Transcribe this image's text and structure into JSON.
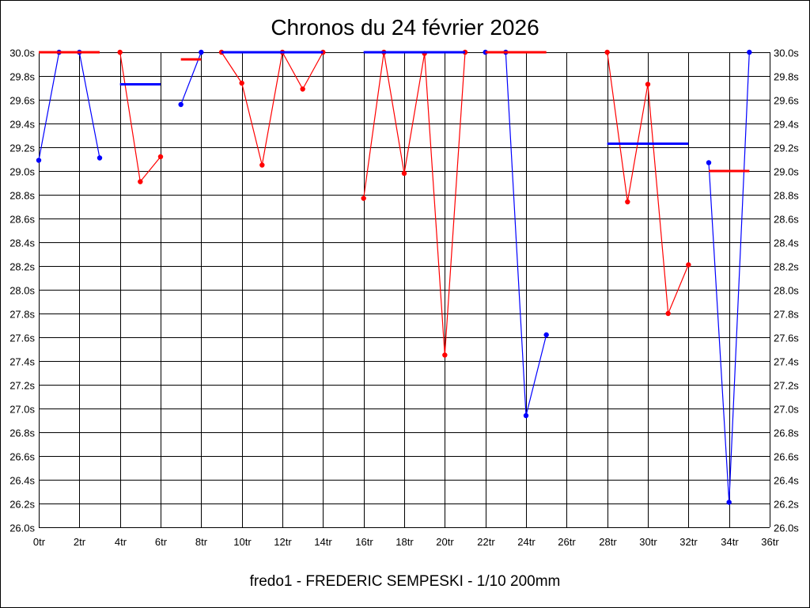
{
  "chart_data": {
    "type": "line",
    "title": "Chronos du 24 février 2026",
    "xlabel": "fredo1 - FREDERIC SEMPESKI - 1/10 200mm",
    "ylabel": "",
    "xlim": [
      0,
      36
    ],
    "ylim": [
      26.0,
      30.0
    ],
    "x_ticks": [
      0,
      2,
      4,
      6,
      8,
      10,
      12,
      14,
      16,
      18,
      20,
      22,
      24,
      26,
      28,
      30,
      32,
      34,
      36
    ],
    "y_ticks": [
      26.0,
      26.2,
      26.4,
      26.6,
      26.8,
      27.0,
      27.2,
      27.4,
      27.6,
      27.8,
      28.0,
      28.2,
      28.4,
      28.6,
      28.8,
      29.0,
      29.2,
      29.4,
      29.6,
      29.8,
      30.0
    ],
    "x_tick_suffix": "tr",
    "y_tick_suffix": "s",
    "grid": true,
    "colors": {
      "red": "#ff0000",
      "blue": "#0000ff"
    },
    "runs": [
      {
        "color": "blue",
        "x": [
          0,
          1,
          2,
          3
        ],
        "y": [
          29.09,
          30.0,
          30.0,
          29.11
        ],
        "avg": null
      },
      {
        "color": "red",
        "x": [],
        "y": [],
        "avg": {
          "x": [
            0,
            3
          ],
          "y": 30.0
        }
      },
      {
        "color": "red",
        "x": [
          4,
          5,
          6
        ],
        "y": [
          30.0,
          28.91,
          29.12
        ],
        "avg": null
      },
      {
        "color": "blue",
        "x": [],
        "y": [],
        "avg": {
          "x": [
            4,
            6
          ],
          "y": 29.73
        }
      },
      {
        "color": "blue",
        "x": [
          7,
          8
        ],
        "y": [
          29.56,
          30.0
        ],
        "avg": null
      },
      {
        "color": "red",
        "x": [],
        "y": [],
        "avg": {
          "x": [
            7,
            8
          ],
          "y": 29.94
        }
      },
      {
        "color": "red",
        "x": [
          9,
          10,
          11,
          12,
          13,
          14
        ],
        "y": [
          30.0,
          29.74,
          29.05,
          30.0,
          29.69,
          30.0
        ],
        "avg": null
      },
      {
        "color": "blue",
        "x": [],
        "y": [],
        "avg": {
          "x": [
            9,
            14
          ],
          "y": 30.0
        }
      },
      {
        "color": "red",
        "x": [
          16,
          17,
          18,
          19,
          20,
          21
        ],
        "y": [
          28.77,
          30.0,
          28.98,
          29.99,
          27.45,
          30.0
        ],
        "avg": null
      },
      {
        "color": "blue",
        "x": [],
        "y": [],
        "avg": {
          "x": [
            16,
            21
          ],
          "y": 30.0
        }
      },
      {
        "color": "blue",
        "x": [
          22,
          23,
          24,
          25
        ],
        "y": [
          30.0,
          30.0,
          26.94,
          27.62
        ],
        "avg": null
      },
      {
        "color": "red",
        "x": [],
        "y": [],
        "avg": {
          "x": [
            22,
            25
          ],
          "y": 30.0
        }
      },
      {
        "color": "red",
        "x": [
          28,
          29,
          30,
          31,
          32
        ],
        "y": [
          30.0,
          28.74,
          29.73,
          27.8,
          28.21
        ],
        "avg": null
      },
      {
        "color": "blue",
        "x": [],
        "y": [],
        "avg": {
          "x": [
            28,
            32
          ],
          "y": 29.23
        }
      },
      {
        "color": "blue",
        "x": [
          33,
          34,
          35
        ],
        "y": [
          29.07,
          26.21,
          30.0
        ],
        "avg": null
      },
      {
        "color": "red",
        "x": [],
        "y": [],
        "avg": {
          "x": [
            33,
            35
          ],
          "y": 29.0
        }
      }
    ]
  }
}
